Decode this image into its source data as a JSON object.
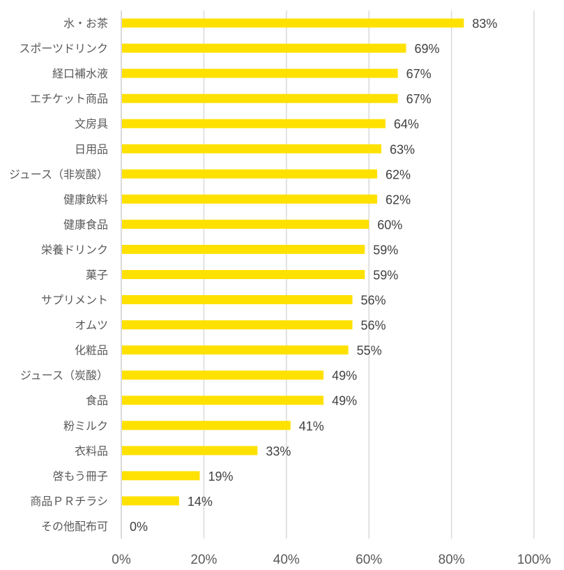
{
  "chart_data": {
    "type": "bar",
    "orientation": "horizontal",
    "title": "",
    "xlabel": "",
    "ylabel": "",
    "xlim": [
      0,
      100
    ],
    "grid": true,
    "legend": "none",
    "bar_color": "#FFE100",
    "grid_color": "#D9D9D9",
    "x_ticks": [
      "0%",
      "20%",
      "40%",
      "60%",
      "80%",
      "100%"
    ],
    "x_tick_values": [
      0,
      20,
      40,
      60,
      80,
      100
    ],
    "categories": [
      "水・お茶",
      "スポーツドリンク",
      "経口補水液",
      "エチケット商品",
      "文房具",
      "日用品",
      "ジュース（非炭酸）",
      "健康飲料",
      "健康食品",
      "栄養ドリンク",
      "菓子",
      "サプリメント",
      "オムツ",
      "化粧品",
      "ジュース（炭酸）",
      "食品",
      "粉ミルク",
      "衣料品",
      "啓もう冊子",
      "商品ＰＲチラシ",
      "その他配布可"
    ],
    "values": [
      83,
      69,
      67,
      67,
      64,
      63,
      62,
      62,
      60,
      59,
      59,
      56,
      56,
      55,
      49,
      49,
      41,
      33,
      19,
      14,
      0
    ],
    "labels": [
      "83%",
      "69%",
      "67%",
      "67%",
      "64%",
      "63%",
      "62%",
      "62%",
      "60%",
      "59%",
      "59%",
      "56%",
      "56%",
      "55%",
      "49%",
      "49%",
      "41%",
      "33%",
      "19%",
      "14%",
      "0%"
    ]
  }
}
